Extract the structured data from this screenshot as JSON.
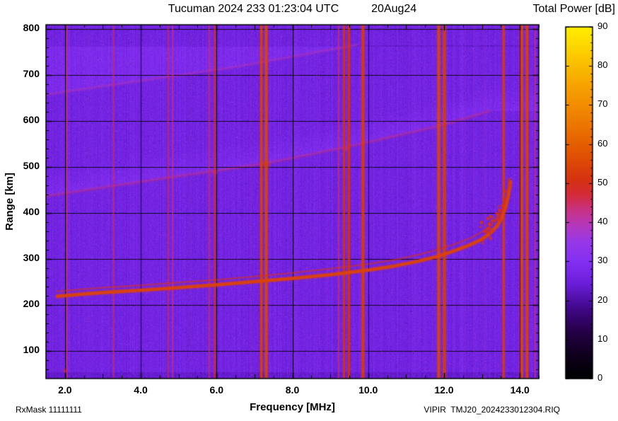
{
  "header": {
    "title_main": "Tucuman 2024 233 01:23:04 UTC",
    "title_date": "20Aug24"
  },
  "footer": {
    "rx_mask": "RxMask 11111111",
    "file": "VIPIR  TMJ20_2024233012304.RIQ"
  },
  "chart_data": {
    "type": "heatmap",
    "title": "Tucuman 2024 233 01:23:04 UTC 20Aug24",
    "xlabel": "Frequency [MHz]",
    "ylabel": "Range [km]",
    "colorbar_label": "Total Power [dB]",
    "xlim": [
      1.5,
      14.5
    ],
    "ylim": [
      40,
      810
    ],
    "x_ticks": [
      2,
      4,
      6,
      8,
      10,
      12,
      14
    ],
    "x_tick_labels": [
      "2.0",
      "4.0",
      "6.0",
      "8.0",
      "10.0",
      "12.0",
      "14.0"
    ],
    "y_ticks": [
      100,
      200,
      300,
      400,
      500,
      600,
      700,
      800
    ],
    "y_tick_labels": [
      "100",
      "200",
      "300",
      "400",
      "500",
      "600",
      "700",
      "800"
    ],
    "grid": true,
    "colorbar": {
      "min": 0,
      "max": 90,
      "ticks": [
        0,
        10,
        20,
        30,
        40,
        50,
        60,
        70,
        80,
        90
      ],
      "tick_labels": [
        "0",
        "10",
        "20",
        "30",
        "40",
        "50",
        "60",
        "70",
        "80",
        "90"
      ]
    },
    "colormap_stops": [
      [
        0,
        "#000000"
      ],
      [
        6,
        "#10001e"
      ],
      [
        12,
        "#260048"
      ],
      [
        18,
        "#41088a"
      ],
      [
        24,
        "#6a1ed8"
      ],
      [
        30,
        "#8530f2"
      ],
      [
        35,
        "#9838e8"
      ],
      [
        39,
        "#b438c0"
      ],
      [
        43,
        "#c93386"
      ],
      [
        47,
        "#d32b3a"
      ],
      [
        51,
        "#d63312"
      ],
      [
        58,
        "#e25602"
      ],
      [
        66,
        "#ee7c00"
      ],
      [
        75,
        "#f7a300"
      ],
      [
        83,
        "#fccc00"
      ],
      [
        90,
        "#ffef00"
      ]
    ],
    "background_db": 26,
    "noise": {
      "amplitude": 4,
      "speckle_prob": 0.0035,
      "seed": 1234567
    },
    "rfi_stripes": [
      {
        "f": 2.06,
        "w": 2,
        "db": 45
      },
      {
        "f": 2.62,
        "w": 1,
        "db": 38
      },
      {
        "f": 3.28,
        "w": 2,
        "db": 45
      },
      {
        "f": 3.9,
        "w": 1,
        "db": 36
      },
      {
        "f": 4.72,
        "w": 2,
        "db": 46
      },
      {
        "f": 4.84,
        "w": 2,
        "db": 44
      },
      {
        "f": 5.34,
        "w": 1,
        "db": 37
      },
      {
        "f": 5.8,
        "w": 2,
        "db": 46
      },
      {
        "f": 5.95,
        "w": 3,
        "db": 48
      },
      {
        "f": 6.9,
        "w": 1,
        "db": 38
      },
      {
        "f": 7.18,
        "w": 3,
        "db": 54
      },
      {
        "f": 7.31,
        "w": 4,
        "db": 55
      },
      {
        "f": 8.12,
        "w": 1,
        "db": 37
      },
      {
        "f": 8.65,
        "w": 1,
        "db": 36
      },
      {
        "f": 9.22,
        "w": 2,
        "db": 45
      },
      {
        "f": 9.36,
        "w": 3,
        "db": 51
      },
      {
        "f": 9.49,
        "w": 3,
        "db": 51
      },
      {
        "f": 9.86,
        "w": 4,
        "db": 53
      },
      {
        "f": 10.35,
        "w": 1,
        "db": 37
      },
      {
        "f": 11.2,
        "w": 1,
        "db": 38
      },
      {
        "f": 11.86,
        "w": 4,
        "db": 55
      },
      {
        "f": 12.01,
        "w": 4,
        "db": 54
      },
      {
        "f": 12.55,
        "w": 1,
        "db": 40
      },
      {
        "f": 12.8,
        "w": 1,
        "db": 38
      },
      {
        "f": 13.05,
        "w": 1,
        "db": 40
      },
      {
        "f": 13.57,
        "w": 3,
        "db": 53
      },
      {
        "f": 14.05,
        "w": 4,
        "db": 55
      },
      {
        "f": 14.19,
        "w": 4,
        "db": 54
      },
      {
        "f": 14.4,
        "w": 2,
        "db": 44
      }
    ],
    "main_trace": {
      "db": 54,
      "points": [
        [
          1.8,
          219
        ],
        [
          2.5,
          224
        ],
        [
          3.0,
          227
        ],
        [
          4.0,
          232
        ],
        [
          5.0,
          238
        ],
        [
          6.0,
          244
        ],
        [
          7.0,
          251
        ],
        [
          8.0,
          258
        ],
        [
          9.0,
          266
        ],
        [
          10.0,
          276
        ],
        [
          10.7,
          285
        ],
        [
          11.3,
          295
        ],
        [
          11.8,
          305
        ],
        [
          12.2,
          316
        ],
        [
          12.6,
          328
        ],
        [
          12.95,
          341
        ],
        [
          13.2,
          355
        ],
        [
          13.4,
          372
        ],
        [
          13.52,
          390
        ],
        [
          13.62,
          412
        ],
        [
          13.7,
          440
        ],
        [
          13.75,
          468
        ]
      ]
    },
    "second_trace": {
      "db": 50,
      "points": [
        [
          1.8,
          230
        ],
        [
          3.0,
          238
        ],
        [
          4.0,
          243
        ],
        [
          5.0,
          249
        ],
        [
          6.0,
          255
        ],
        [
          7.0,
          262
        ],
        [
          8.0,
          270
        ],
        [
          9.0,
          279
        ],
        [
          10.0,
          289
        ],
        [
          10.8,
          300
        ],
        [
          11.4,
          311
        ],
        [
          11.9,
          322
        ],
        [
          12.3,
          333
        ],
        [
          12.7,
          346
        ],
        [
          13.0,
          359
        ],
        [
          13.25,
          374
        ],
        [
          13.42,
          390
        ],
        [
          13.55,
          410
        ],
        [
          13.63,
          432
        ],
        [
          13.69,
          455
        ]
      ]
    },
    "oblique_traces": [
      {
        "db": 44,
        "points": [
          [
            1.5,
            437
          ],
          [
            4.0,
            468
          ],
          [
            7.3,
            508
          ],
          [
            9.5,
            545
          ],
          [
            11.9,
            590
          ],
          [
            13.2,
            622
          ]
        ]
      },
      {
        "db": 40,
        "points": [
          [
            1.5,
            658
          ],
          [
            4.0,
            688
          ],
          [
            6.5,
            718
          ],
          [
            9.7,
            766
          ]
        ]
      }
    ],
    "blobs": [
      {
        "f": 7.3,
        "km": 506,
        "r": 8,
        "db": 52
      },
      {
        "f": 5.95,
        "km": 489,
        "r": 5,
        "db": 45
      },
      {
        "f": 9.42,
        "km": 540,
        "r": 4,
        "db": 44
      },
      {
        "f": 2.0,
        "km": 57,
        "r": 4,
        "db": 47
      }
    ],
    "cusp_dots": {
      "count": 70,
      "f_min": 12.95,
      "f_max": 13.72,
      "db": 50,
      "jitter_km": 36
    }
  }
}
